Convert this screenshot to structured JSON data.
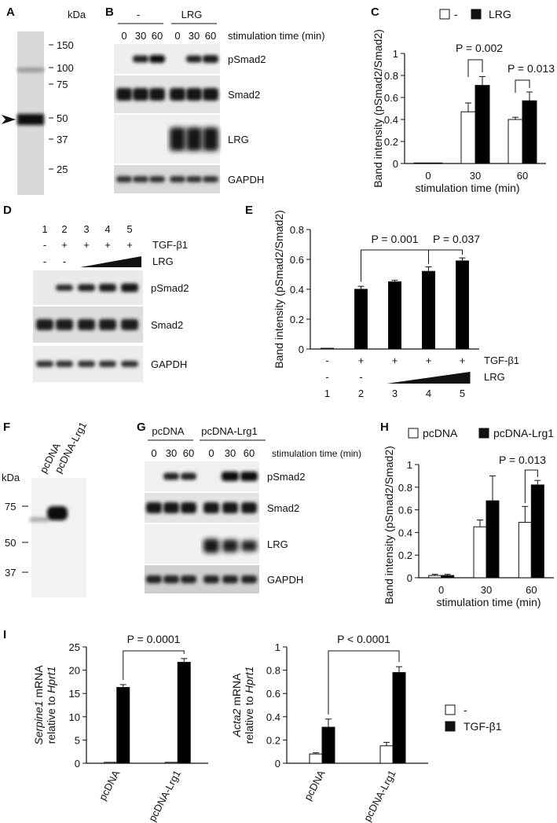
{
  "panels": {
    "A": {
      "label": "A",
      "unit": "kDa",
      "markers": [
        "150",
        "100",
        "75",
        "50",
        "37",
        "25"
      ]
    },
    "B": {
      "label": "B",
      "groups": [
        "-",
        "LRG"
      ],
      "times": [
        "0",
        "30",
        "60",
        "0",
        "30",
        "60"
      ],
      "time_label": "stimulation time (min)",
      "rows": [
        "pSmad2",
        "Smad2",
        "LRG",
        "GAPDH"
      ]
    },
    "D": {
      "label": "D",
      "lanes": [
        "1",
        "2",
        "3",
        "4",
        "5"
      ],
      "tgf_label": "TGF-β1",
      "tgf_signs": [
        "-",
        "+",
        "+",
        "+",
        "+"
      ],
      "lrg_label": "LRG",
      "lrg_signs": [
        "-",
        "-"
      ],
      "rows": [
        "pSmad2",
        "Smad2",
        "GAPDH"
      ]
    },
    "F": {
      "label": "F",
      "unit": "kDa",
      "lanes": [
        "pcDNA",
        "pcDNA-Lrg1"
      ],
      "markers": [
        "75",
        "50",
        "37"
      ]
    },
    "G": {
      "label": "G",
      "groups": [
        "pcDNA",
        "pcDNA-Lrg1"
      ],
      "times": [
        "0",
        "30",
        "60",
        "0",
        "30",
        "60"
      ],
      "time_label": "stimulation time (min)",
      "rows": [
        "pSmad2",
        "Smad2",
        "LRG",
        "GAPDH"
      ]
    }
  },
  "chart_data": [
    {
      "id": "C",
      "label": "C",
      "type": "bar",
      "categories": [
        "0",
        "30",
        "60"
      ],
      "xlabel": "stimulation time (min)",
      "ylabel": "Band intensity (pSmad2/Smad2)",
      "ylim": [
        0,
        1
      ],
      "yticks": [
        "0",
        "0.2",
        "0.4",
        "0.6",
        "0.8",
        "1"
      ],
      "legend": [
        "-",
        "LRG"
      ],
      "series": [
        {
          "name": "-",
          "values": [
            0.005,
            0.47,
            0.4
          ],
          "errors": [
            0.0,
            0.08,
            0.02
          ],
          "fill": "#ffffff"
        },
        {
          "name": "LRG",
          "values": [
            0.005,
            0.71,
            0.57
          ],
          "errors": [
            0.0,
            0.08,
            0.08
          ],
          "fill": "#000000"
        }
      ],
      "annotations": [
        {
          "text": "P = 0.002",
          "category": 1
        },
        {
          "text": "P = 0.013",
          "category": 2
        }
      ]
    },
    {
      "id": "E",
      "label": "E",
      "type": "bar",
      "categories": [
        "1",
        "2",
        "3",
        "4",
        "5"
      ],
      "ylabel": "Band intensity (pSmad2/Smad2)",
      "ylim": [
        0,
        0.8
      ],
      "yticks": [
        "0",
        "0.2",
        "0.4",
        "0.6",
        "0.8"
      ],
      "series": [
        {
          "name": "",
          "values": [
            0.005,
            0.4,
            0.45,
            0.52,
            0.59
          ],
          "errors": [
            0.0,
            0.02,
            0.01,
            0.03,
            0.02
          ],
          "fill": "#000000"
        }
      ],
      "tgf_label": "TGF-β1",
      "tgf_signs": [
        "-",
        "+",
        "+",
        "+",
        "+"
      ],
      "lrg_label": "LRG",
      "lrg_signs": [
        "-",
        "-"
      ],
      "annotations": [
        {
          "text": "P = 0.001",
          "from": 1,
          "to": 3
        },
        {
          "text": "P = 0.037",
          "from": 3,
          "to": 4
        }
      ]
    },
    {
      "id": "H",
      "label": "H",
      "type": "bar",
      "categories": [
        "0",
        "30",
        "60"
      ],
      "xlabel": "stimulation time (min)",
      "ylabel": "Band intensity (pSmad2/Smad2)",
      "ylim": [
        0,
        1
      ],
      "yticks": [
        "0",
        "0.2",
        "0.4",
        "0.6",
        "0.8",
        "1"
      ],
      "legend": [
        "pcDNA",
        "pcDNA-Lrg1"
      ],
      "series": [
        {
          "name": "pcDNA",
          "values": [
            0.02,
            0.45,
            0.49
          ],
          "errors": [
            0.01,
            0.06,
            0.14
          ],
          "fill": "#ffffff"
        },
        {
          "name": "pcDNA-Lrg1",
          "values": [
            0.02,
            0.68,
            0.82
          ],
          "errors": [
            0.01,
            0.22,
            0.04
          ],
          "fill": "#000000"
        }
      ],
      "annotations": [
        {
          "text": "P = 0.013",
          "category": 2
        }
      ]
    },
    {
      "id": "I1",
      "label": "I",
      "type": "bar",
      "categories": [
        "pcDNA",
        "pcDNA-Lrg1"
      ],
      "ylabel_line1": "Serpine1",
      "ylabel_line1_rest": " mRNA",
      "ylabel_line2": "relative to ",
      "ylabel_line2_italic": "Hprt1",
      "ylim": [
        0,
        25
      ],
      "yticks": [
        "0",
        "5",
        "10",
        "15",
        "20",
        "25"
      ],
      "series": [
        {
          "name": "-",
          "values": [
            0.2,
            0.2
          ],
          "errors": [
            0.0,
            0.0
          ],
          "fill": "#ffffff"
        },
        {
          "name": "TGF-β1",
          "values": [
            16.3,
            21.7
          ],
          "errors": [
            0.6,
            0.8
          ],
          "fill": "#000000"
        }
      ],
      "annotations": [
        {
          "text": "P = 0.0001"
        }
      ]
    },
    {
      "id": "I2",
      "label": "",
      "type": "bar",
      "categories": [
        "pcDNA",
        "pcDNA-Lrg1"
      ],
      "ylabel_line1": "Acta2",
      "ylabel_line1_rest": " mRNA",
      "ylabel_line2": "relative to ",
      "ylabel_line2_italic": "Hprt1",
      "ylim": [
        0,
        1
      ],
      "yticks": [
        "0",
        "0.2",
        "0.4",
        "0.6",
        "0.8",
        "1"
      ],
      "series": [
        {
          "name": "-",
          "values": [
            0.08,
            0.15
          ],
          "errors": [
            0.01,
            0.03
          ],
          "fill": "#ffffff"
        },
        {
          "name": "TGF-β1",
          "values": [
            0.31,
            0.78
          ],
          "errors": [
            0.07,
            0.05
          ],
          "fill": "#000000"
        }
      ],
      "legend": [
        "-",
        "TGF-β1"
      ],
      "annotations": [
        {
          "text": "P < 0.0001"
        }
      ]
    }
  ]
}
